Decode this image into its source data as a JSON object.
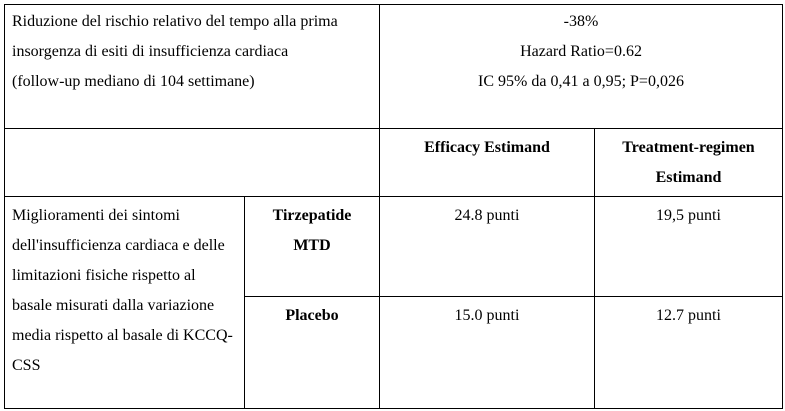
{
  "table": {
    "summary": {
      "outcome": [
        "Riduzione del rischio relativo del tempo alla prima insorgenza di esiti di insufficienza cardiaca",
        "(follow-up mediano di 104 settimane)"
      ],
      "result": [
        "-38%",
        "Hazard Ratio=0.62",
        "IC 95% da 0,41 a 0,95; P=0,026"
      ]
    },
    "headers": [
      "Efficacy Estimand",
      "Treatment-regimen Estimand"
    ],
    "outcome": "Miglioramenti dei sintomi dell'insufficienza cardiaca e delle limitazioni fisiche rispetto al basale misurati dalla variazione media rispetto al basale di KCCQ-CSS",
    "groups": [
      {
        "name": "Tirzepatide MTD",
        "values": [
          "24.8 punti",
          "19,5 punti"
        ]
      },
      {
        "name": "Placebo",
        "values": [
          "15.0 punti",
          "12.7 punti"
        ]
      }
    ]
  }
}
